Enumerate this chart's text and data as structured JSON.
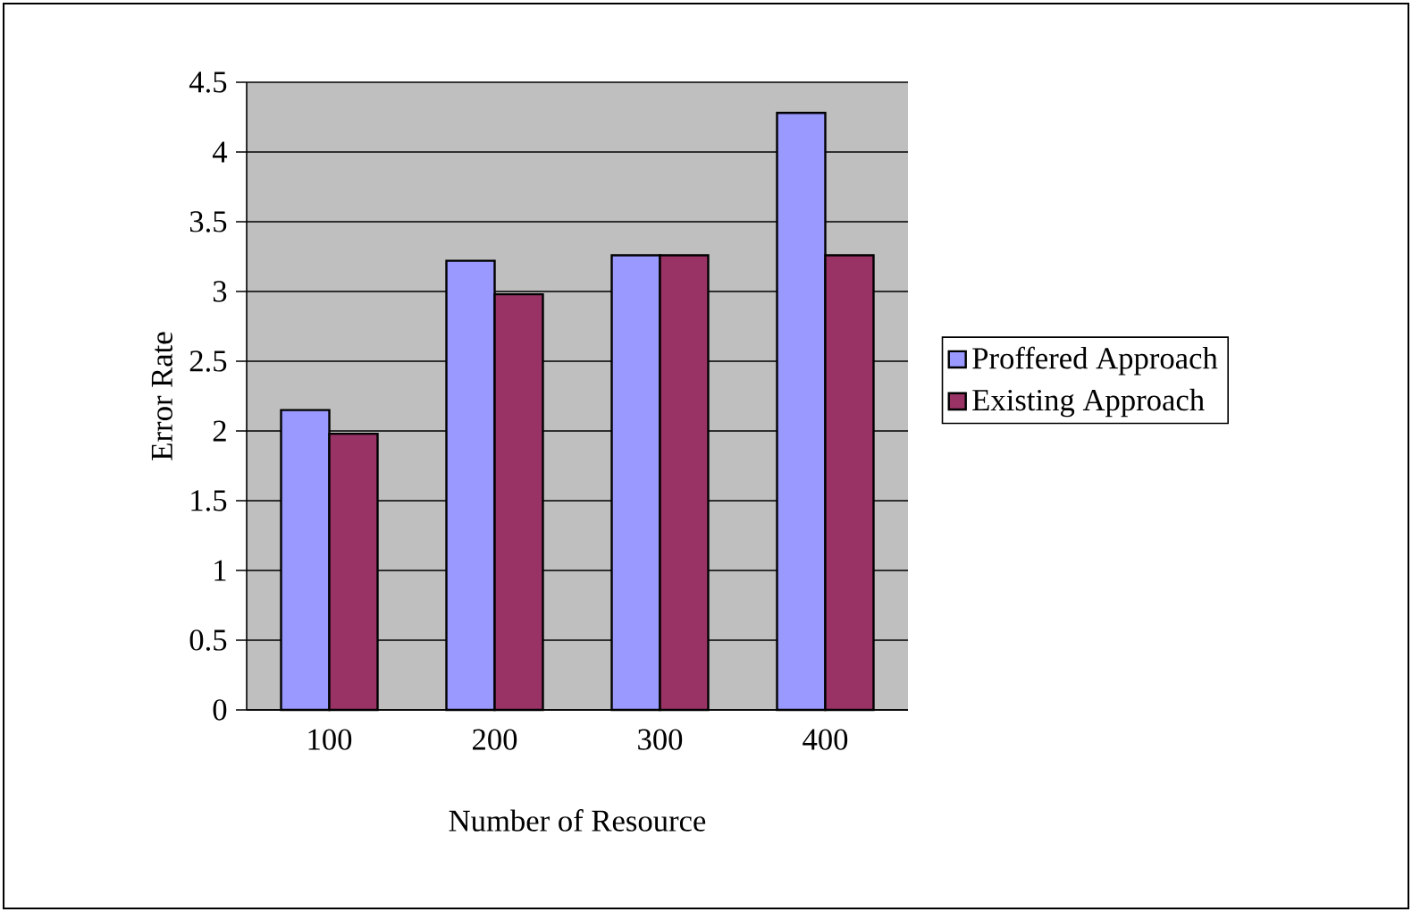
{
  "chart_data": {
    "type": "bar",
    "xlabel": "Number of Resource",
    "ylabel": "Error Rate",
    "categories": [
      "100",
      "200",
      "300",
      "400"
    ],
    "series": [
      {
        "name": "Proffered Approach",
        "color": "#9999ff",
        "values": [
          2.15,
          3.22,
          3.26,
          4.28
        ]
      },
      {
        "name": "Existing Approach",
        "color": "#993366",
        "values": [
          1.98,
          2.98,
          3.26,
          3.26
        ]
      }
    ],
    "ylim": [
      0,
      4.5
    ],
    "yticks": [
      0,
      0.5,
      1,
      1.5,
      2,
      2.5,
      3,
      3.5,
      4,
      4.5
    ],
    "grid": "y",
    "legend": "right"
  }
}
